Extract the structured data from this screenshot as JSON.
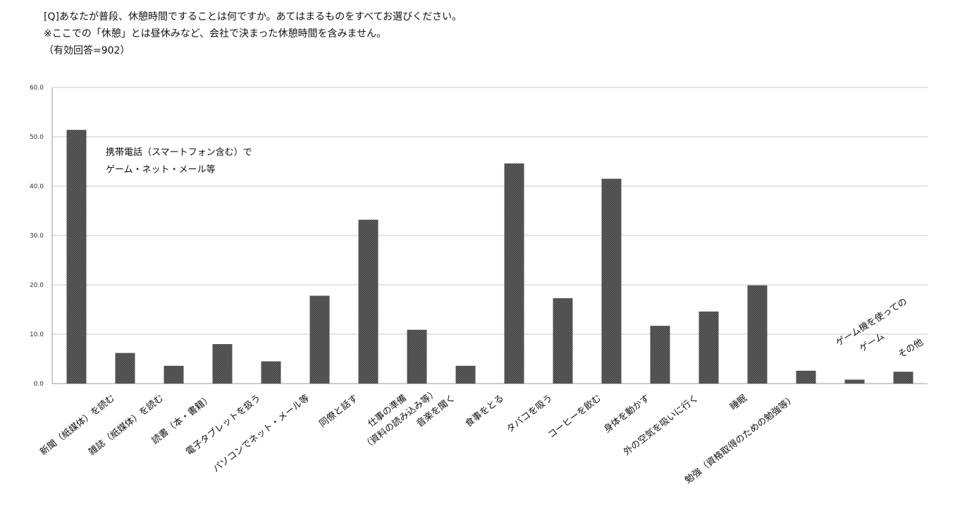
{
  "chart_data": {
    "type": "bar",
    "title": [
      "[Q]あなたが普段、休憩時間ですることは何ですか。あてはまるものをすべてお選びください。",
      "※ここでの「休憩」とは昼休みなど、会社で決まった休憩時間を含みません。",
      "（有効回答=902）"
    ],
    "categories": [
      "携帯電話（スマートフォン含む）で\nゲーム・ネット・メール等",
      "新聞（紙媒体）を読む",
      "雑誌（紙媒体）を読む",
      "読書（本・書籍）",
      "電子タブレットを扱う",
      "パソコンでネット・メール等",
      "同僚と話す",
      "仕事の準備\n（資料の読み込み等）",
      "音楽を聞く",
      "食事をとる",
      "タバコを吸う",
      "コーヒーを飲む",
      "身体を動かす",
      "外の空気を吸いに行く",
      "睡眠",
      "勉強（資格取得のための勉強等）",
      "ゲーム機を使っての\nゲーム",
      "その他"
    ],
    "values": [
      51.4,
      6.2,
      3.6,
      8.0,
      4.5,
      17.8,
      33.2,
      10.9,
      3.6,
      44.6,
      17.3,
      41.5,
      11.7,
      14.6,
      19.9,
      2.6,
      0.8,
      2.4
    ],
    "color": "#5a5a5a",
    "ylim": [
      0,
      60
    ],
    "yticks": [
      {
        "value": 0,
        "label": "0.0"
      },
      {
        "value": 10,
        "label": "10.0"
      },
      {
        "value": 20,
        "label": "20.0"
      },
      {
        "value": 30,
        "label": "30.0"
      },
      {
        "value": 40,
        "label": "40.0"
      },
      {
        "value": 50,
        "label": "50.0"
      },
      {
        "value": 60,
        "label": "60.0"
      }
    ],
    "grid": true
  }
}
